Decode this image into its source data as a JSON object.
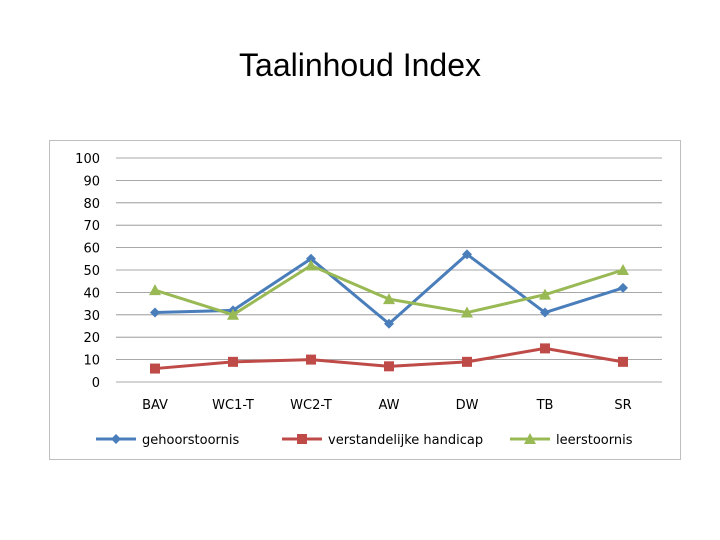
{
  "slide": {
    "title": "Taalinhoud Index"
  },
  "chart_data": {
    "type": "line",
    "title": "",
    "xlabel": "",
    "ylabel": "",
    "categories": [
      "BAV",
      "WC1-T",
      "WC2-T",
      "AW",
      "DW",
      "TB",
      "SR"
    ],
    "ylim": [
      0,
      100
    ],
    "yticks": [
      0,
      10,
      20,
      30,
      40,
      50,
      60,
      70,
      80,
      90,
      100
    ],
    "grid": true,
    "legend": "bottom",
    "series": [
      {
        "name": "gehoorstoornis",
        "color": "#4a7ebb",
        "marker": "diamond",
        "values": [
          31,
          32,
          55,
          26,
          57,
          31,
          42
        ]
      },
      {
        "name": "verstandelijke handicap",
        "color": "#be4b48",
        "marker": "square",
        "values": [
          6,
          9,
          10,
          7,
          9,
          15,
          9
        ]
      },
      {
        "name": "leerstoornis",
        "color": "#98b954",
        "marker": "triangle",
        "values": [
          41,
          30,
          52,
          37,
          31,
          39,
          50
        ]
      }
    ]
  }
}
